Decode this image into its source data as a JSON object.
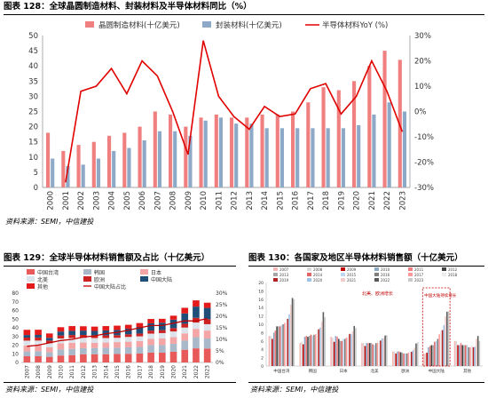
{
  "fig128": {
    "label": "图表 128：",
    "title": "全球晶圆制造材料、封装材料及半导体材料同比（%）",
    "source": "资料来源：SEMI，中信建投"
  },
  "fig129": {
    "label": "图表 129：",
    "title": "全球半导体材料销售额及占比（十亿美元）",
    "source": "资料来源：SEMI，中信建投"
  },
  "fig130": {
    "label": "图表 130：",
    "title": "各国家及地区半导体材料销售额（十亿美元）",
    "source": "资料来源：SEMI，中信建投"
  },
  "chart_data": [
    {
      "type": "bar",
      "id": "fig128",
      "categories": [
        "2000",
        "2001",
        "2002",
        "2003",
        "2004",
        "2005",
        "2006",
        "2007",
        "2008",
        "2009",
        "2010",
        "2011",
        "2012",
        "2013",
        "2014",
        "2015",
        "2016",
        "2017",
        "2018",
        "2019",
        "2020",
        "2021",
        "2022",
        "2023"
      ],
      "series": [
        {
          "name": "晶圆制造材料(十亿美元)",
          "type": "bar",
          "axis": "left",
          "color": "#f08080",
          "values": [
            18,
            12,
            14,
            15,
            17,
            18,
            20,
            25,
            24,
            20,
            23,
            24,
            23,
            23,
            24,
            24,
            25,
            28,
            33,
            32,
            35,
            40,
            45,
            42
          ]
        },
        {
          "name": "封装材料(十亿美元)",
          "type": "bar",
          "axis": "left",
          "color": "#8ea9c8",
          "values": [
            9.5,
            7,
            7.5,
            9.5,
            12,
            13,
            15.5,
            18.5,
            18.5,
            17,
            22,
            23,
            21,
            21,
            19.5,
            19.5,
            19.5,
            19.5,
            19.5,
            19.5,
            20.5,
            24,
            28,
            25
          ]
        },
        {
          "name": "半导体材料YoY (%)",
          "type": "line",
          "axis": "right",
          "color": "#e00000",
          "values": [
            null,
            -28,
            8,
            10,
            17,
            7,
            20,
            14,
            0,
            -17,
            28,
            6,
            -2,
            -7,
            2,
            -2,
            -1,
            9,
            11,
            -1,
            6,
            20,
            8,
            -8
          ]
        }
      ],
      "ylim_left": [
        0,
        50
      ],
      "yticks_left": [
        0,
        5,
        10,
        15,
        20,
        25,
        30,
        35,
        40,
        45,
        50
      ],
      "ylim_right": [
        -30,
        30
      ],
      "yticks_right": [
        "-30%",
        "-20%",
        "-10%",
        "0%",
        "10%",
        "20%",
        "30%"
      ],
      "legend": "top",
      "grid": false
    },
    {
      "type": "bar",
      "id": "fig129",
      "stacked": true,
      "categories": [
        "2007",
        "2008",
        "2009",
        "2010",
        "2011",
        "2012",
        "2013",
        "2014",
        "2015",
        "2016",
        "2017",
        "2018",
        "2019",
        "2020",
        "2021",
        "2022",
        "2023"
      ],
      "series": [
        {
          "name": "中国台湾",
          "color": "#e85a5a",
          "values": [
            7.2,
            7.2,
            6.5,
            8.0,
            8.5,
            9.5,
            9.5,
            9.5,
            9.8,
            10.0,
            10.3,
            11.4,
            11.3,
            12.4,
            14.7,
            16.3,
            16.0
          ]
        },
        {
          "name": "韩国",
          "color": "#a9b9c9",
          "values": [
            5.5,
            5.8,
            5.2,
            7.0,
            7.2,
            7.0,
            7.2,
            7.5,
            7.2,
            7.5,
            7.6,
            8.7,
            8.8,
            9.2,
            10.6,
            12.9,
            11.7
          ]
        },
        {
          "name": "日本",
          "color": "#f4a6a6",
          "values": [
            7.0,
            6.8,
            5.8,
            7.2,
            7.0,
            6.5,
            6.0,
            6.0,
            6.5,
            6.5,
            6.8,
            7.2,
            7.7,
            7.6,
            8.3,
            9.6,
            9.1
          ]
        },
        {
          "name": "北美",
          "color": "#dde3ea",
          "values": [
            5.5,
            5.5,
            4.8,
            5.5,
            5.5,
            5.5,
            5.5,
            5.2,
            5.0,
            5.5,
            5.5,
            6.0,
            6.1,
            6.6,
            6.7,
            7.3,
            7.4
          ]
        },
        {
          "name": "欧洲",
          "color": "#cc2222",
          "values": [
            3.5,
            3.5,
            3.0,
            3.5,
            3.5,
            3.3,
            3.2,
            3.0,
            3.0,
            3.0,
            3.2,
            3.5,
            3.4,
            3.8,
            4.4,
            5.4,
            5.7
          ]
        },
        {
          "name": "中国大陆",
          "color": "#1f4e79",
          "values": [
            3.0,
            3.0,
            3.2,
            4.5,
            4.8,
            5.0,
            5.0,
            5.8,
            6.0,
            6.5,
            7.6,
            8.4,
            8.6,
            9.8,
            11.9,
            13.0,
            13.1
          ]
        },
        {
          "name": "其他",
          "color": "#e31b1b",
          "values": [
            6.0,
            6.0,
            5.0,
            5.0,
            5.5,
            5.0,
            5.0,
            5.0,
            5.0,
            4.5,
            4.5,
            5.0,
            4.5,
            4.6,
            6.5,
            7.2,
            6.0
          ]
        },
        {
          "name": "中国大陆占比",
          "type": "line",
          "color": "#c00000",
          "axis": "right",
          "values": [
            7,
            7.5,
            8.5,
            9.5,
            10,
            11,
            11.5,
            12.5,
            13,
            14,
            15,
            16,
            16,
            17,
            18,
            18,
            19
          ]
        }
      ],
      "ylim_left": [
        0,
        80
      ],
      "yticks_left": [
        0,
        10,
        20,
        30,
        40,
        50,
        60,
        70,
        80
      ],
      "ylim_right": [
        0,
        30
      ],
      "yticks_right": [
        "0%",
        "5%",
        "10%",
        "15%",
        "20%",
        "25%",
        "30%"
      ],
      "legend": "top"
    },
    {
      "type": "bar",
      "id": "fig130",
      "categories": [
        "中国台湾",
        "韩国",
        "日本",
        "北美",
        "欧洲",
        "中国大陆",
        "其他"
      ],
      "series_years": [
        "2007",
        "2008",
        "2009",
        "2010",
        "2011",
        "2012",
        "2013",
        "2014",
        "2015",
        "2016",
        "2017",
        "2018",
        "2019",
        "2020",
        "2021",
        "2022",
        "2023"
      ],
      "values": [
        [
          7.2,
          7.2,
          6.5,
          8.0,
          8.5,
          9.5,
          9.5,
          9.5,
          9.8,
          10.0,
          10.3,
          11.4,
          11.3,
          12.4,
          14.7,
          16.3,
          16.0
        ],
        [
          5.5,
          5.8,
          5.2,
          7.0,
          7.2,
          7.0,
          7.2,
          7.5,
          7.2,
          7.5,
          7.6,
          8.7,
          8.8,
          9.2,
          10.6,
          12.9,
          11.7
        ],
        [
          7.0,
          6.8,
          5.8,
          7.2,
          7.0,
          6.5,
          6.0,
          6.0,
          6.5,
          6.5,
          6.8,
          7.2,
          7.7,
          7.6,
          8.3,
          9.6,
          9.1
        ],
        [
          5.5,
          5.5,
          4.8,
          5.5,
          5.5,
          5.5,
          5.5,
          5.2,
          5.0,
          5.5,
          5.5,
          6.0,
          6.1,
          6.6,
          6.7,
          7.3,
          7.4
        ],
        [
          3.5,
          3.5,
          3.0,
          3.5,
          3.5,
          3.3,
          3.2,
          3.0,
          3.0,
          3.0,
          3.2,
          3.5,
          3.4,
          3.8,
          4.4,
          5.4,
          5.7
        ],
        [
          3.0,
          3.0,
          3.2,
          4.5,
          4.8,
          5.0,
          5.0,
          5.8,
          6.0,
          6.5,
          7.6,
          8.4,
          8.6,
          9.8,
          11.9,
          13.0,
          13.1
        ],
        [
          6.0,
          6.0,
          5.0,
          5.0,
          5.5,
          5.0,
          5.0,
          5.0,
          5.0,
          4.5,
          4.5,
          5.0,
          4.5,
          4.6,
          6.5,
          7.2,
          6.0
        ]
      ],
      "ylim": [
        0,
        20
      ],
      "yticks": [
        0,
        2,
        4,
        6,
        8,
        10,
        12,
        14,
        16,
        18,
        20
      ],
      "annotations": [
        "北美、欧洲增长",
        "中国大陆持续增长"
      ],
      "legend": "top"
    }
  ]
}
